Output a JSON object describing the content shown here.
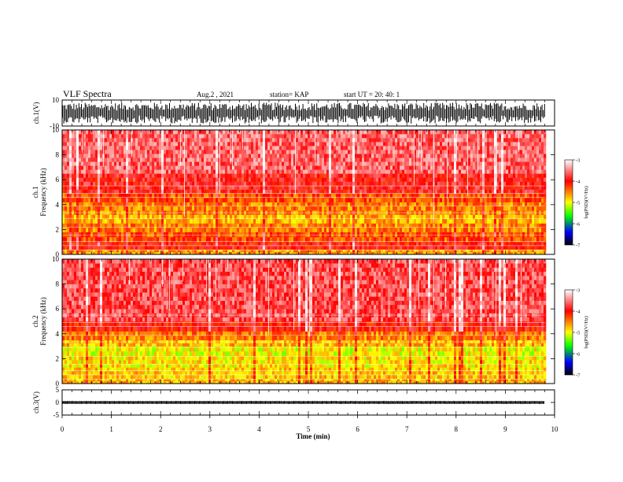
{
  "header": {
    "title": "VLF Spectra",
    "date": "Aug.2  , 2021",
    "station": "station= KAP",
    "start": "start  UT  =   20: 40: 1"
  },
  "colorbar_label": "log(PSD)(V²/Hz)",
  "colorbar_ticks": [
    "-3",
    "-4",
    "-5",
    "-6",
    "-7"
  ],
  "colormap": [
    "#ffffff",
    "#ff0000",
    "#ffff00",
    "#00ff00",
    "#0000ff",
    "#000000"
  ],
  "chart_data": [
    {
      "type": "line",
      "name": "ch1-waveform",
      "ylabel": "ch.1(V)",
      "ylim": [
        -10,
        10
      ],
      "y_ticks": [
        "10",
        "-10"
      ],
      "xlim": [
        0,
        10
      ],
      "color": "#000000",
      "fill_band": [
        -8,
        8
      ]
    },
    {
      "type": "heatmap",
      "name": "ch1-spectrogram",
      "ylabel_channel": "ch.1",
      "ylabel": "Frequency  (kHz)",
      "ylim": [
        0,
        10
      ],
      "y_ticks": [
        "0",
        "2",
        "4",
        "6",
        "8",
        "10"
      ],
      "xlim": [
        0,
        10
      ],
      "data_end_x": 9.8,
      "zlim": [
        -7,
        -3
      ],
      "bands": [
        {
          "f0": 0.0,
          "f1": 0.4,
          "level": -4.6
        },
        {
          "f0": 0.4,
          "f1": 1.0,
          "level": -4.0
        },
        {
          "f0": 1.0,
          "f1": 1.8,
          "level": -4.3
        },
        {
          "f0": 1.8,
          "f1": 2.5,
          "level": -4.5
        },
        {
          "f0": 2.5,
          "f1": 3.2,
          "level": -4.7
        },
        {
          "f0": 3.2,
          "f1": 4.2,
          "level": -4.5
        },
        {
          "f0": 4.2,
          "f1": 4.9,
          "level": -4.3
        },
        {
          "f0": 4.9,
          "f1": 6.5,
          "level": -3.9
        },
        {
          "f0": 6.5,
          "f1": 10.0,
          "level": -3.6
        }
      ]
    },
    {
      "type": "heatmap",
      "name": "ch2-spectrogram",
      "ylabel_channel": "ch.2",
      "ylabel": "Frequency  (kHz)",
      "ylim": [
        0,
        10
      ],
      "y_ticks": [
        "0",
        "2",
        "4",
        "6",
        "8",
        "10"
      ],
      "xlim": [
        0,
        10
      ],
      "data_end_x": 9.8,
      "zlim": [
        -7,
        -3
      ],
      "bands": [
        {
          "f0": 0.0,
          "f1": 0.4,
          "level": -4.7
        },
        {
          "f0": 0.4,
          "f1": 1.3,
          "level": -4.8
        },
        {
          "f0": 1.3,
          "f1": 2.2,
          "level": -4.9
        },
        {
          "f0": 2.2,
          "f1": 3.0,
          "level": -5.0
        },
        {
          "f0": 3.0,
          "f1": 3.5,
          "level": -4.7
        },
        {
          "f0": 3.5,
          "f1": 4.2,
          "level": -4.5
        },
        {
          "f0": 4.2,
          "f1": 5.0,
          "level": -4.0
        },
        {
          "f0": 5.0,
          "f1": 10.0,
          "level": -3.7
        }
      ]
    },
    {
      "type": "line",
      "name": "ch3-waveform",
      "ylabel": "ch.3(V)",
      "ylim": [
        -5,
        5
      ],
      "y_ticks": [
        "5",
        "0",
        "-5"
      ],
      "xlim": [
        0,
        10
      ],
      "color": "#000000",
      "fill_band": [
        -0.6,
        0.6
      ]
    }
  ],
  "x_axis": {
    "label": "Time  (min)",
    "ticks": [
      "0",
      "1",
      "2",
      "3",
      "4",
      "5",
      "6",
      "7",
      "8",
      "9",
      "10"
    ],
    "xlim": [
      0,
      10
    ]
  }
}
